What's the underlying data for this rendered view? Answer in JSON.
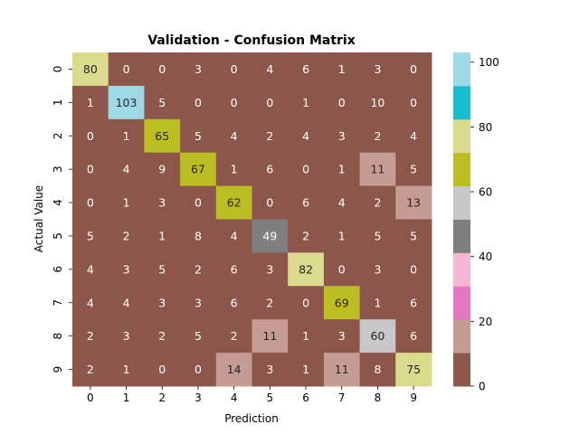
{
  "chart_data": {
    "type": "heatmap",
    "title": "Validation - Confusion Matrix",
    "xlabel": "Prediction",
    "ylabel": "Actual Value",
    "x_categories": [
      "0",
      "1",
      "2",
      "3",
      "4",
      "5",
      "6",
      "7",
      "8",
      "9"
    ],
    "y_categories": [
      "0",
      "1",
      "2",
      "3",
      "4",
      "5",
      "6",
      "7",
      "8",
      "9"
    ],
    "values": [
      [
        80,
        0,
        0,
        3,
        0,
        4,
        6,
        1,
        3,
        0
      ],
      [
        1,
        103,
        5,
        0,
        0,
        0,
        1,
        0,
        10,
        0
      ],
      [
        0,
        1,
        65,
        5,
        4,
        2,
        4,
        3,
        2,
        4
      ],
      [
        0,
        4,
        9,
        67,
        1,
        6,
        0,
        1,
        11,
        5
      ],
      [
        0,
        1,
        3,
        0,
        62,
        0,
        6,
        4,
        2,
        13
      ],
      [
        5,
        2,
        1,
        8,
        4,
        49,
        2,
        1,
        5,
        5
      ],
      [
        4,
        3,
        5,
        2,
        6,
        3,
        82,
        0,
        3,
        0
      ],
      [
        4,
        4,
        3,
        3,
        6,
        2,
        0,
        69,
        1,
        6
      ],
      [
        2,
        3,
        2,
        5,
        2,
        11,
        1,
        3,
        60,
        6
      ],
      [
        2,
        1,
        0,
        0,
        14,
        3,
        1,
        11,
        8,
        75
      ]
    ],
    "vmin": 0,
    "vmax": 103,
    "colormap": [
      "#8c564b",
      "#c49c94",
      "#e377c2",
      "#f7b6d2",
      "#7f7f7f",
      "#c7c7c7",
      "#bcbd22",
      "#dbdb8d",
      "#17becf",
      "#9edae5"
    ],
    "colorbar_ticks": [
      0,
      20,
      40,
      60,
      80,
      100
    ]
  }
}
